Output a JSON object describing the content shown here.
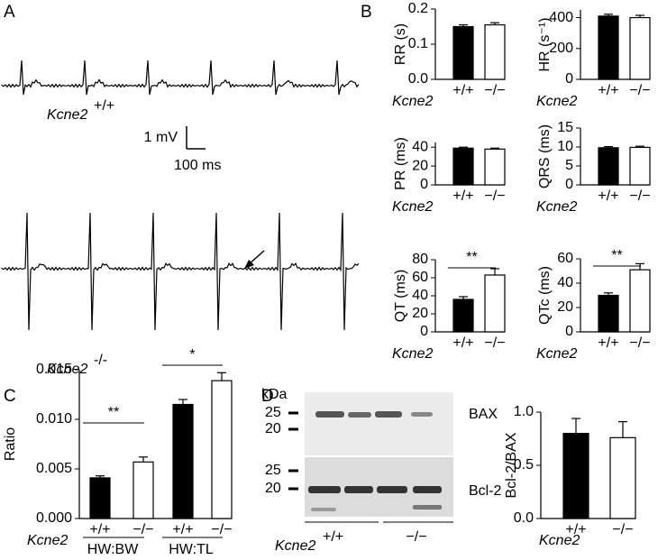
{
  "panels": [
    "A",
    "B",
    "C",
    "D"
  ],
  "ecg": {
    "gene": "Kcne2",
    "wt_genotype": "+/+",
    "ko_genotype": "-/-",
    "scale_v": "1 mV",
    "scale_t": "100 ms"
  },
  "blot": {
    "unit": "kDa",
    "bax_marks": [
      "25",
      "20"
    ],
    "bcl_marks": [
      "25",
      "20"
    ],
    "bax": "BAX",
    "bcl2": "Bcl-2",
    "gene": "Kcne2",
    "wt": "+/+",
    "ko": "−/−"
  },
  "chart_data": [
    {
      "type": "bar",
      "y_label": "RR (s)",
      "x_label": "Kcne2",
      "categories": [
        "+/+",
        "−/−"
      ],
      "values": [
        0.15,
        0.155
      ],
      "errors": [
        0.005,
        0.006
      ],
      "colors": [
        "#000000",
        "#ffffff"
      ],
      "ylim": [
        0,
        0.2
      ],
      "yticks": [
        {
          "value": 0,
          "label": "0.0"
        },
        {
          "value": 0.1,
          "label": "0.1"
        },
        {
          "value": 0.2,
          "label": "0.2"
        }
      ]
    },
    {
      "type": "bar",
      "y_label": "HR (s⁻¹)",
      "x_label": "Kcne2",
      "categories": [
        "+/+",
        "−/−"
      ],
      "values": [
        410,
        400
      ],
      "errors": [
        12,
        15
      ],
      "colors": [
        "#000000",
        "#ffffff"
      ],
      "ylim": [
        0,
        450
      ],
      "yticks": [
        0,
        200,
        400
      ]
    },
    {
      "type": "bar",
      "y_label": "PR (ms)",
      "x_label": "Kcne2",
      "categories": [
        "+/+",
        "−/−"
      ],
      "values": [
        39,
        38
      ],
      "errors": [
        1,
        1
      ],
      "colors": [
        "#000000",
        "#ffffff"
      ],
      "ylim": [
        0,
        45
      ],
      "yticks": [
        0,
        20,
        40
      ]
    },
    {
      "type": "bar",
      "y_label": "QRS (ms)",
      "x_label": "Kcne2",
      "categories": [
        "+/+",
        "−/−"
      ],
      "values": [
        9.8,
        9.9
      ],
      "errors": [
        0.3,
        0.3
      ],
      "colors": [
        "#000000",
        "#ffffff"
      ],
      "ylim": [
        0,
        15
      ],
      "yticks": [
        0,
        5,
        10,
        15
      ]
    },
    {
      "type": "bar",
      "y_label": "QT (ms)",
      "x_label": "Kcne2",
      "categories": [
        "+/+",
        "−/−"
      ],
      "values": [
        36,
        63
      ],
      "errors": [
        3,
        7
      ],
      "colors": [
        "#000000",
        "#ffffff"
      ],
      "ylim": [
        0,
        80
      ],
      "yticks": [
        0,
        20,
        40,
        60,
        80
      ],
      "significance": [
        "**"
      ]
    },
    {
      "type": "bar",
      "y_label": "QTc (ms)",
      "x_label": "Kcne2",
      "categories": [
        "+/+",
        "−/−"
      ],
      "values": [
        30,
        51
      ],
      "errors": [
        2,
        5
      ],
      "colors": [
        "#000000",
        "#ffffff"
      ],
      "ylim": [
        0,
        60
      ],
      "yticks": [
        0,
        20,
        40,
        60
      ],
      "significance": [
        "**"
      ]
    },
    {
      "type": "bar",
      "y_label": "Ratio",
      "x_label": "Kcne2",
      "categories": [
        "+/+",
        "−/−",
        "+/+",
        "−/−"
      ],
      "values": [
        0.0041,
        0.0057,
        0.0115,
        0.0139
      ],
      "errors": [
        0.0002,
        0.0005,
        0.0005,
        0.0008
      ],
      "colors": [
        "#000000",
        "#ffffff",
        "#000000",
        "#ffffff"
      ],
      "ylim": [
        0,
        0.015
      ],
      "yticks": [
        {
          "value": 0,
          "label": "0.000"
        },
        {
          "value": 0.005,
          "label": "0.005"
        },
        {
          "value": 0.01,
          "label": "0.010"
        },
        {
          "value": 0.015,
          "label": "0.015"
        }
      ],
      "groups": [
        "HW:BW",
        "HW:TL"
      ],
      "significance": [
        "**",
        "*"
      ]
    },
    {
      "type": "bar",
      "y_label": "Bcl-2/BAX",
      "x_label": "Kcne2",
      "categories": [
        "+/+",
        "−/−"
      ],
      "values": [
        0.8,
        0.76
      ],
      "errors": [
        0.14,
        0.15
      ],
      "colors": [
        "#000000",
        "#ffffff"
      ],
      "ylim": [
        0,
        1
      ],
      "yticks": [
        {
          "value": 0,
          "label": "0.0"
        },
        {
          "value": 0.5,
          "label": "0.5"
        },
        {
          "value": 1,
          "label": "1.0"
        }
      ]
    }
  ]
}
